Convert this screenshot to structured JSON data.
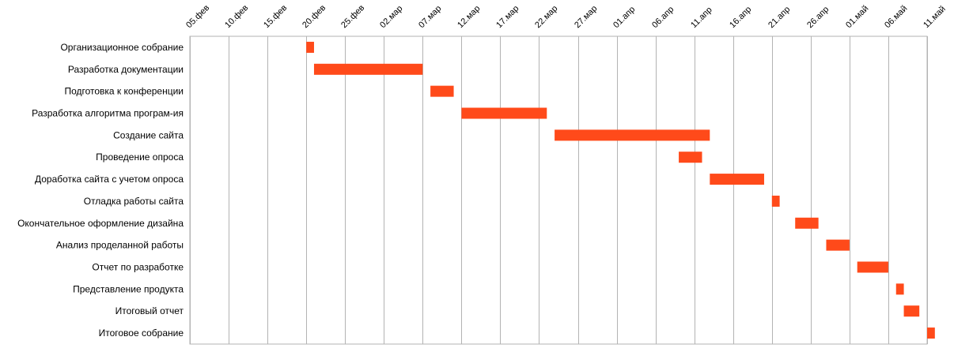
{
  "chart_data": {
    "type": "bar",
    "subtype": "gantt",
    "orientation": "horizontal",
    "title": "",
    "xlabel": "",
    "ylabel": "",
    "x_ticks": [
      "05.фев",
      "10.фев",
      "15.фев",
      "20.фев",
      "25.фев",
      "02.мар",
      "07.мар",
      "12.мар",
      "17.мар",
      "22.мар",
      "27.мар",
      "01.апр",
      "06.апр",
      "11.апр",
      "16.апр",
      "21.апр",
      "26.апр",
      "01.май",
      "06.май",
      "11.май"
    ],
    "xlim": [
      "05.фев",
      "11.май"
    ],
    "grid": "vertical",
    "bar_color": "#FF4A1A",
    "grid_color": "#B3B3B3",
    "tasks": [
      {
        "name": "Организационное собрание",
        "start": "20.фев",
        "end": "21.фев"
      },
      {
        "name": "Разработка документации",
        "start": "21.фев",
        "end": "07.мар"
      },
      {
        "name": "Подготовка к конференции",
        "start": "08.мар",
        "end": "11.мар"
      },
      {
        "name": "Разработка алгоритма програм-ия",
        "start": "12.мар",
        "end": "23.мар"
      },
      {
        "name": "Создание сайта",
        "start": "24.мар",
        "end": "13.апр"
      },
      {
        "name": "Проведение опроса",
        "start": "09.апр",
        "end": "12.апр"
      },
      {
        "name": "Доработка сайта с учетом опроса",
        "start": "13.апр",
        "end": "20.апр"
      },
      {
        "name": "Отладка работы сайта",
        "start": "21.апр",
        "end": "22.апр"
      },
      {
        "name": "Окончательное оформление дизайна",
        "start": "24.апр",
        "end": "27.апр"
      },
      {
        "name": "Анализ проделанной работы",
        "start": "28.апр",
        "end": "01.май"
      },
      {
        "name": "Отчет по разработке",
        "start": "02.май",
        "end": "06.май"
      },
      {
        "name": "Представление продукта",
        "start": "07.май",
        "end": "08.май"
      },
      {
        "name": "Итоговый отчет",
        "start": "08.май",
        "end": "10.май"
      },
      {
        "name": "Итоговое собрание",
        "start": "11.май",
        "end": "12.май"
      }
    ]
  }
}
